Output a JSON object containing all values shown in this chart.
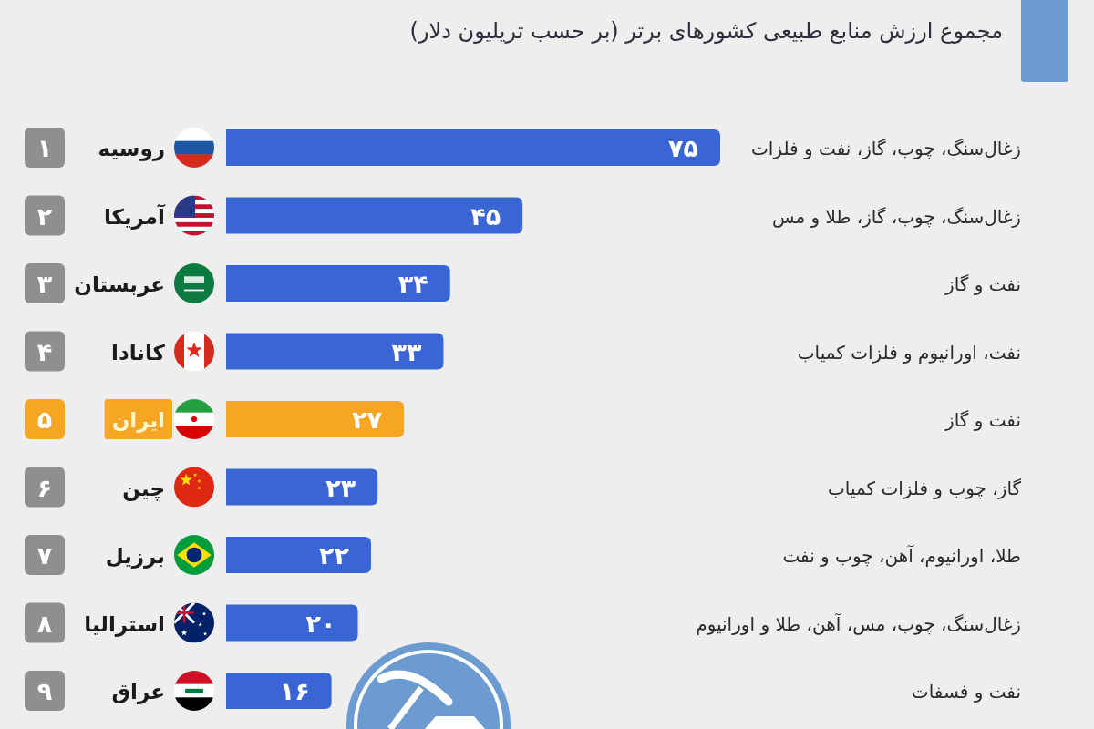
{
  "chart_data": {
    "type": "bar",
    "orientation": "horizontal",
    "title": "مجموع ارزش منابع طبیعی کشورهای برتر (بر حسب تریلیون دلار)",
    "categories": [
      "روسیه",
      "آمریکا",
      "عربستان",
      "کانادا",
      "ایران",
      "چین",
      "برزیل",
      "استرالیا",
      "عراق"
    ],
    "values": [
      75,
      45,
      34,
      33,
      27,
      23,
      22,
      20,
      16
    ],
    "value_labels": [
      "۷۵",
      "۴۵",
      "۳۴",
      "۳۳",
      "۲۷",
      "۲۳",
      "۲۲",
      "۲۰",
      "۱۶"
    ],
    "colors": [
      "#3a66d5",
      "#3a66d5",
      "#3a66d5",
      "#3a66d5",
      "#f6a623",
      "#3a66d5",
      "#3a66d5",
      "#3a66d5",
      "#3a66d5"
    ],
    "annotations": [
      "۱",
      "زغال‌سنگ، چوب، گاز، نفت و فلزات",
      "۲",
      "زغال‌سنگ، چوب، گاز، طلا و مس",
      "۳",
      "نفت و گاز",
      "۴",
      "نفت، اورانیوم و فلزات کمیاب",
      "۵",
      "نفت و گاز",
      "۶",
      "گاز، چوب و فلزات کمیاب",
      "۷",
      "طلا، اورانیوم، آهن، چوب و نفت",
      "۸",
      "زغال‌سنگ، چوب، مس، آهن، طلا و اورانیوم",
      "۹",
      "نفت و فسفات"
    ]
  }
}
